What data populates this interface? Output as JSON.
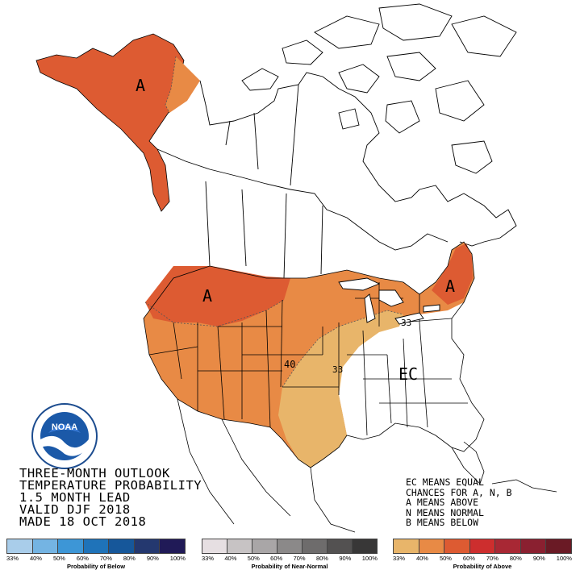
{
  "outlook": {
    "title_lines": [
      "THREE-MONTH OUTLOOK",
      "TEMPERATURE PROBABILITY",
      "1.5 MONTH LEAD",
      "VALID DJF 2018",
      "MADE 18 OCT 2018"
    ]
  },
  "legend_notes": [
    "EC MEANS EQUAL",
    "CHANCES FOR A, N, B",
    "A MEANS ABOVE",
    "N MEANS NORMAL",
    "B MEANS BELOW"
  ],
  "map_labels": {
    "alaska": "A",
    "northwest": "A",
    "northeast": "A",
    "ec": "EC",
    "contour_40": "40",
    "contour_33_east": "33",
    "contour_33_plains": "33"
  },
  "logo": {
    "name": "NOAA",
    "ring_text": "NATIONAL OCEANIC AND ATMOSPHERIC ADMINISTRATION · U.S. DEPARTMENT OF COMMERCE"
  },
  "scales": {
    "below": {
      "caption": "Probability of Below",
      "ticks": [
        "33%",
        "40%",
        "50%",
        "60%",
        "70%",
        "80%",
        "90%",
        "100%"
      ],
      "colors": [
        "#a9cdea",
        "#74b4e3",
        "#3d96d6",
        "#1f73b9",
        "#16579a",
        "#24386f",
        "#201a57"
      ]
    },
    "normal": {
      "caption": "Probability of Near-Normal",
      "ticks": [
        "33%",
        "40%",
        "50%",
        "60%",
        "70%",
        "80%",
        "90%",
        "100%"
      ],
      "colors": [
        "#e6dfe2",
        "#c7c3c4",
        "#a9a6a7",
        "#8b8989",
        "#6e6c6c",
        "#535151",
        "#383737"
      ]
    },
    "above": {
      "caption": "Probability of Above",
      "ticks": [
        "33%",
        "40%",
        "50%",
        "60%",
        "70%",
        "80%",
        "90%",
        "100%"
      ],
      "colors": [
        "#e8b56a",
        "#e88a45",
        "#dd5b32",
        "#cd2e2e",
        "#a82834",
        "#8a2030",
        "#6a1a25"
      ]
    }
  },
  "colors": {
    "above_33_40": "#e8b56a",
    "above_40_50": "#e88a45",
    "above_50_60": "#dd5b32"
  }
}
